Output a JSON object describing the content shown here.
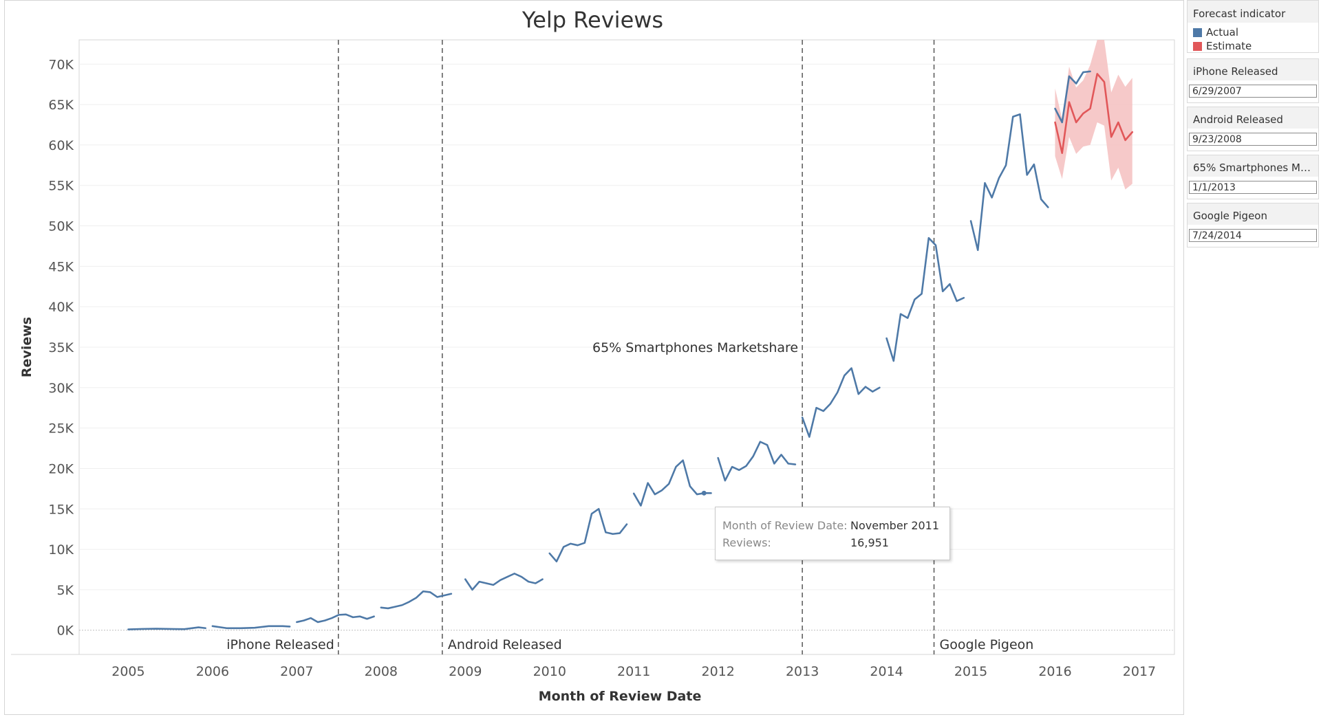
{
  "chart_data": {
    "type": "line",
    "title": "Yelp Reviews",
    "xlabel": "Month of Review Date",
    "ylabel": "Reviews",
    "x_ticks": [
      "2005",
      "2006",
      "2007",
      "2008",
      "2009",
      "2010",
      "2011",
      "2012",
      "2013",
      "2014",
      "2015",
      "2016",
      "2017"
    ],
    "y_ticks": [
      "0K",
      "5K",
      "10K",
      "15K",
      "20K",
      "25K",
      "30K",
      "35K",
      "40K",
      "45K",
      "50K",
      "55K",
      "60K",
      "65K",
      "70K"
    ],
    "xlim": [
      "2004-06",
      "2017-06"
    ],
    "ylim": [
      -3000,
      73000
    ],
    "grid": "horizontal",
    "reference_lines": [
      {
        "label": "iPhone Released",
        "date": "2007-06-29"
      },
      {
        "label": "Android Released",
        "date": "2008-09-23"
      },
      {
        "label": "65% Smartphones Marketshare",
        "date": "2013-01-01"
      },
      {
        "label": "Google Pigeon",
        "date": "2014-07-24"
      }
    ],
    "series": [
      {
        "name": "Actual",
        "color": "#4e79a7",
        "segments": [
          [
            [
              "2005-01",
              100
            ],
            [
              "2005-03",
              150
            ],
            [
              "2005-05",
              180
            ],
            [
              "2005-07",
              150
            ],
            [
              "2005-09",
              130
            ],
            [
              "2005-11",
              350
            ],
            [
              "2005-12",
              250
            ]
          ],
          [
            [
              "2006-01",
              500
            ],
            [
              "2006-03",
              250
            ],
            [
              "2006-05",
              250
            ],
            [
              "2006-07",
              300
            ],
            [
              "2006-09",
              500
            ],
            [
              "2006-11",
              500
            ],
            [
              "2006-12",
              450
            ]
          ],
          [
            [
              "2007-01",
              1000
            ],
            [
              "2007-02",
              1200
            ],
            [
              "2007-03",
              1500
            ],
            [
              "2007-04",
              1000
            ],
            [
              "2007-05",
              1200
            ],
            [
              "2007-06",
              1500
            ],
            [
              "2007-07",
              1900
            ],
            [
              "2007-08",
              1950
            ],
            [
              "2007-09",
              1600
            ],
            [
              "2007-10",
              1700
            ],
            [
              "2007-11",
              1400
            ],
            [
              "2007-12",
              1700
            ]
          ],
          [
            [
              "2008-01",
              2800
            ],
            [
              "2008-02",
              2700
            ],
            [
              "2008-03",
              2900
            ],
            [
              "2008-04",
              3100
            ],
            [
              "2008-05",
              3500
            ],
            [
              "2008-06",
              4000
            ],
            [
              "2008-07",
              4800
            ],
            [
              "2008-08",
              4700
            ],
            [
              "2008-09",
              4100
            ],
            [
              "2008-10",
              4300
            ],
            [
              "2008-11",
              4500
            ]
          ],
          [
            [
              "2009-01",
              6300
            ],
            [
              "2009-02",
              5000
            ],
            [
              "2009-03",
              6000
            ],
            [
              "2009-04",
              5800
            ],
            [
              "2009-05",
              5600
            ],
            [
              "2009-06",
              6200
            ],
            [
              "2009-07",
              6600
            ],
            [
              "2009-08",
              7000
            ],
            [
              "2009-09",
              6600
            ],
            [
              "2009-10",
              6000
            ],
            [
              "2009-11",
              5800
            ],
            [
              "2009-12",
              6300
            ]
          ],
          [
            [
              "2010-01",
              9500
            ],
            [
              "2010-02",
              8500
            ],
            [
              "2010-03",
              10300
            ],
            [
              "2010-04",
              10700
            ],
            [
              "2010-05",
              10500
            ],
            [
              "2010-06",
              10800
            ],
            [
              "2010-07",
              14400
            ],
            [
              "2010-08",
              15000
            ],
            [
              "2010-09",
              12100
            ],
            [
              "2010-10",
              11900
            ],
            [
              "2010-11",
              12000
            ],
            [
              "2010-12",
              13100
            ]
          ],
          [
            [
              "2011-01",
              16900
            ],
            [
              "2011-02",
              15400
            ],
            [
              "2011-03",
              18200
            ],
            [
              "2011-04",
              16800
            ],
            [
              "2011-05",
              17300
            ],
            [
              "2011-06",
              18100
            ],
            [
              "2011-07",
              20200
            ],
            [
              "2011-08",
              21000
            ],
            [
              "2011-09",
              17800
            ],
            [
              "2011-10",
              16800
            ],
            [
              "2011-11",
              16951
            ],
            [
              "2011-12",
              16950
            ]
          ],
          [
            [
              "2012-01",
              21300
            ],
            [
              "2012-02",
              18500
            ],
            [
              "2012-03",
              20200
            ],
            [
              "2012-04",
              19800
            ],
            [
              "2012-05",
              20300
            ],
            [
              "2012-06",
              21500
            ],
            [
              "2012-07",
              23300
            ],
            [
              "2012-08",
              22900
            ],
            [
              "2012-09",
              20600
            ],
            [
              "2012-10",
              21700
            ],
            [
              "2012-11",
              20600
            ],
            [
              "2012-12",
              20500
            ]
          ],
          [
            [
              "2013-01",
              26300
            ],
            [
              "2013-02",
              23900
            ],
            [
              "2013-03",
              27500
            ],
            [
              "2013-04",
              27100
            ],
            [
              "2013-05",
              28000
            ],
            [
              "2013-06",
              29400
            ],
            [
              "2013-07",
              31500
            ],
            [
              "2013-08",
              32400
            ],
            [
              "2013-09",
              29200
            ],
            [
              "2013-10",
              30100
            ],
            [
              "2013-11",
              29500
            ],
            [
              "2013-12",
              30000
            ]
          ],
          [
            [
              "2014-01",
              36100
            ],
            [
              "2014-02",
              33300
            ],
            [
              "2014-03",
              39100
            ],
            [
              "2014-04",
              38600
            ],
            [
              "2014-05",
              40900
            ],
            [
              "2014-06",
              41600
            ],
            [
              "2014-07",
              48500
            ],
            [
              "2014-08",
              47600
            ],
            [
              "2014-09",
              41900
            ],
            [
              "2014-10",
              42800
            ],
            [
              "2014-11",
              40700
            ],
            [
              "2014-12",
              41100
            ]
          ],
          [
            [
              "2015-01",
              50600
            ],
            [
              "2015-02",
              47000
            ],
            [
              "2015-03",
              55300
            ],
            [
              "2015-04",
              53500
            ],
            [
              "2015-05",
              55900
            ],
            [
              "2015-06",
              57500
            ],
            [
              "2015-07",
              63500
            ],
            [
              "2015-08",
              63800
            ],
            [
              "2015-09",
              56300
            ],
            [
              "2015-10",
              57600
            ],
            [
              "2015-11",
              53300
            ],
            [
              "2015-12",
              52300
            ]
          ],
          [
            [
              "2016-01",
              64500
            ],
            [
              "2016-02",
              62800
            ],
            [
              "2016-03",
              68500
            ],
            [
              "2016-04",
              67600
            ],
            [
              "2016-05",
              69000
            ],
            [
              "2016-06",
              69100
            ]
          ]
        ]
      },
      {
        "name": "Estimate",
        "color": "#e15759",
        "band_color": "#f4c0c0",
        "points": [
          [
            "2016-01",
            62800
          ],
          [
            "2016-02",
            59000
          ],
          [
            "2016-03",
            65300
          ],
          [
            "2016-04",
            62800
          ],
          [
            "2016-05",
            63900
          ],
          [
            "2016-06",
            64500
          ],
          [
            "2016-07",
            68800
          ],
          [
            "2016-08",
            67800
          ],
          [
            "2016-09",
            61000
          ],
          [
            "2016-10",
            62800
          ],
          [
            "2016-11",
            60600
          ],
          [
            "2016-12",
            61600
          ]
        ],
        "band_upper": [
          [
            "2016-01",
            67000
          ],
          [
            "2016-02",
            63200
          ],
          [
            "2016-03",
            69700
          ],
          [
            "2016-04",
            67100
          ],
          [
            "2016-05",
            68000
          ],
          [
            "2016-06",
            69900
          ],
          [
            "2016-07",
            74000
          ],
          [
            "2016-08",
            73500
          ],
          [
            "2016-09",
            66500
          ],
          [
            "2016-10",
            68700
          ],
          [
            "2016-11",
            67200
          ],
          [
            "2016-12",
            68300
          ]
        ],
        "band_lower": [
          [
            "2016-01",
            58600
          ],
          [
            "2016-02",
            55800
          ],
          [
            "2016-03",
            61000
          ],
          [
            "2016-04",
            58900
          ],
          [
            "2016-05",
            59800
          ],
          [
            "2016-06",
            60000
          ],
          [
            "2016-07",
            62800
          ],
          [
            "2016-08",
            62400
          ],
          [
            "2016-09",
            55600
          ],
          [
            "2016-10",
            57200
          ],
          [
            "2016-11",
            54500
          ],
          [
            "2016-12",
            55200
          ]
        ]
      }
    ],
    "highlight": {
      "date": "2011-11",
      "value": 16951
    }
  },
  "tooltip": {
    "rows": [
      {
        "key": "Month of Review Date:",
        "value": "November 2011"
      },
      {
        "key": "Reviews:",
        "value": "16,951"
      }
    ]
  },
  "legend": {
    "title": "Forecast indicator",
    "items": [
      {
        "label": "Actual",
        "color": "#4e79a7"
      },
      {
        "label": "Estimate",
        "color": "#e15759"
      }
    ]
  },
  "parameters": [
    {
      "title": "iPhone Released",
      "value": "6/29/2007"
    },
    {
      "title": "Android Released",
      "value": "9/23/2008"
    },
    {
      "title": "65% Smartphones Mar...",
      "value": "1/1/2013"
    },
    {
      "title": "Google Pigeon",
      "value": "7/24/2014"
    }
  ]
}
